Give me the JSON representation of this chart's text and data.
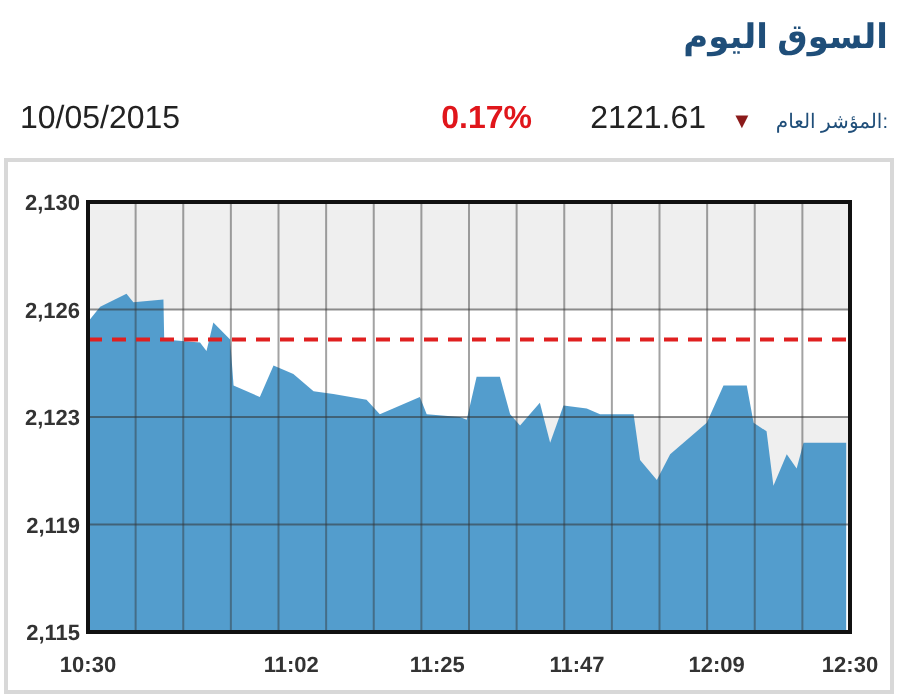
{
  "chart_data": {
    "type": "area",
    "title": "السوق اليوم",
    "annotations": [
      "المؤشر العام:",
      "▼",
      "2121.61",
      "0.17%",
      "10/05/2015"
    ],
    "x": [
      10.505,
      10.532,
      10.601,
      10.619,
      10.698,
      10.7,
      10.794,
      10.811,
      10.829,
      10.873,
      10.882,
      10.951,
      10.987,
      11.039,
      11.092,
      11.144,
      11.231,
      11.266,
      11.371,
      11.389,
      11.476,
      11.494,
      11.52,
      11.581,
      11.608,
      11.634,
      11.686,
      11.713,
      11.748,
      11.809,
      11.844,
      11.932,
      11.949,
      11.993,
      12.028,
      12.089,
      12.124,
      12.168,
      12.229,
      12.247,
      12.281,
      12.299,
      12.334,
      12.36,
      12.378,
      12.49
    ],
    "series": [
      {
        "color": "#3b8fc6",
        "values": [
          2125.9,
          2126.35,
          2126.8,
          2126.5,
          2126.6,
          2125.2,
          2125.1,
          2124.8,
          2125.8,
          2125.2,
          2123.6,
          2123.2,
          2124.3,
          2124.0,
          2123.4,
          2123.3,
          2123.1,
          2122.6,
          2123.2,
          2122.6,
          2122.5,
          2122.4,
          2123.9,
          2123.9,
          2122.6,
          2122.2,
          2123.0,
          2121.6,
          2122.9,
          2122.8,
          2122.6,
          2122.6,
          2121.0,
          2120.3,
          2121.2,
          2121.9,
          2122.3,
          2123.6,
          2123.6,
          2122.3,
          2122.0,
          2120.1,
          2121.2,
          2120.7,
          2121.6,
          2121.6
        ]
      }
    ],
    "xlim": [
      10.5,
      12.5
    ],
    "xticks": [
      {
        "value": 10.5,
        "label": "10:30"
      },
      {
        "value": 10.625,
        "label": null
      },
      {
        "value": 10.75,
        "label": null
      },
      {
        "value": 10.875,
        "label": null
      },
      {
        "value": 11.0333,
        "label": "11:02"
      },
      {
        "value": 11.0,
        "label": null
      },
      {
        "value": 11.125,
        "label": null
      },
      {
        "value": 11.25,
        "label": null
      },
      {
        "value": 11.4167,
        "label": "11:25"
      },
      {
        "value": 11.375,
        "label": null
      },
      {
        "value": 11.5,
        "label": null
      },
      {
        "value": 11.625,
        "label": null
      },
      {
        "value": 11.75,
        "label": null
      },
      {
        "value": 11.7833,
        "label": "11:47"
      },
      {
        "value": 11.875,
        "label": null
      },
      {
        "value": 12.0,
        "label": null
      },
      {
        "value": 12.125,
        "label": null
      },
      {
        "value": 12.15,
        "label": "12:09"
      },
      {
        "value": 12.25,
        "label": null
      },
      {
        "value": 12.375,
        "label": null
      },
      {
        "value": 12.5,
        "label": "12:30"
      }
    ],
    "ylim": [
      2115,
      2130
    ],
    "yticks": [
      {
        "value": 2115,
        "label": "2,115"
      },
      {
        "value": 2118.75,
        "label": "2,119"
      },
      {
        "value": 2122.5,
        "label": "2,123"
      },
      {
        "value": 2126.25,
        "label": "2,126"
      },
      {
        "value": 2130,
        "label": "2,130"
      }
    ],
    "grid": true,
    "ref_lines": [
      {
        "axis": "y",
        "value": 2125.2,
        "color": "#e02020",
        "line_style": "dashed"
      }
    ]
  }
}
